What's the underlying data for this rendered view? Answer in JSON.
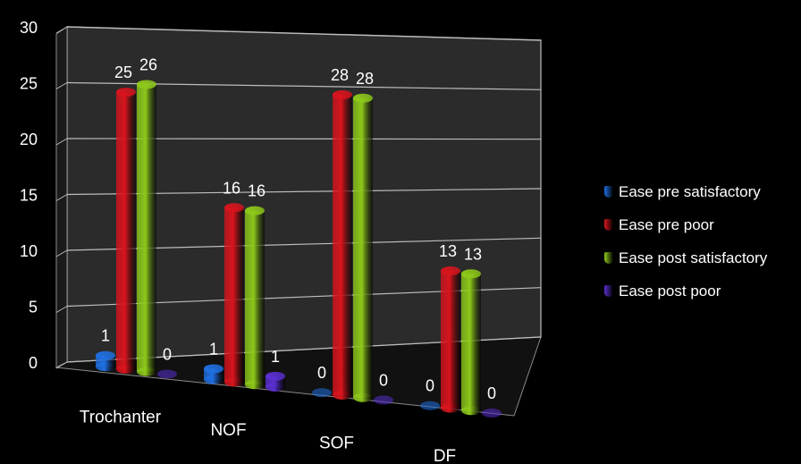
{
  "chart_data": {
    "type": "bar",
    "title": "",
    "xlabel": "",
    "ylabel": "",
    "categories": [
      "Trochanter",
      "NOF",
      "SOF",
      "DF"
    ],
    "series": [
      {
        "name": "Ease pre satisfactory",
        "color": "#1f6fe0",
        "values": [
          1,
          1,
          0,
          0
        ]
      },
      {
        "name": "Ease pre poor",
        "color": "#d8141d",
        "values": [
          25,
          16,
          28,
          13
        ]
      },
      {
        "name": "Ease post satisfactory",
        "color": "#8dc81a",
        "values": [
          26,
          16,
          28,
          13
        ]
      },
      {
        "name": "Ease post poor",
        "color": "#5a2fd0",
        "values": [
          0,
          1,
          0,
          0
        ]
      }
    ],
    "ylim": [
      0,
      30
    ],
    "yticks": [
      0,
      5,
      10,
      15,
      20,
      25,
      30
    ],
    "grid": true,
    "legend_position": "right",
    "view": "3d-perspective-cylinders"
  }
}
